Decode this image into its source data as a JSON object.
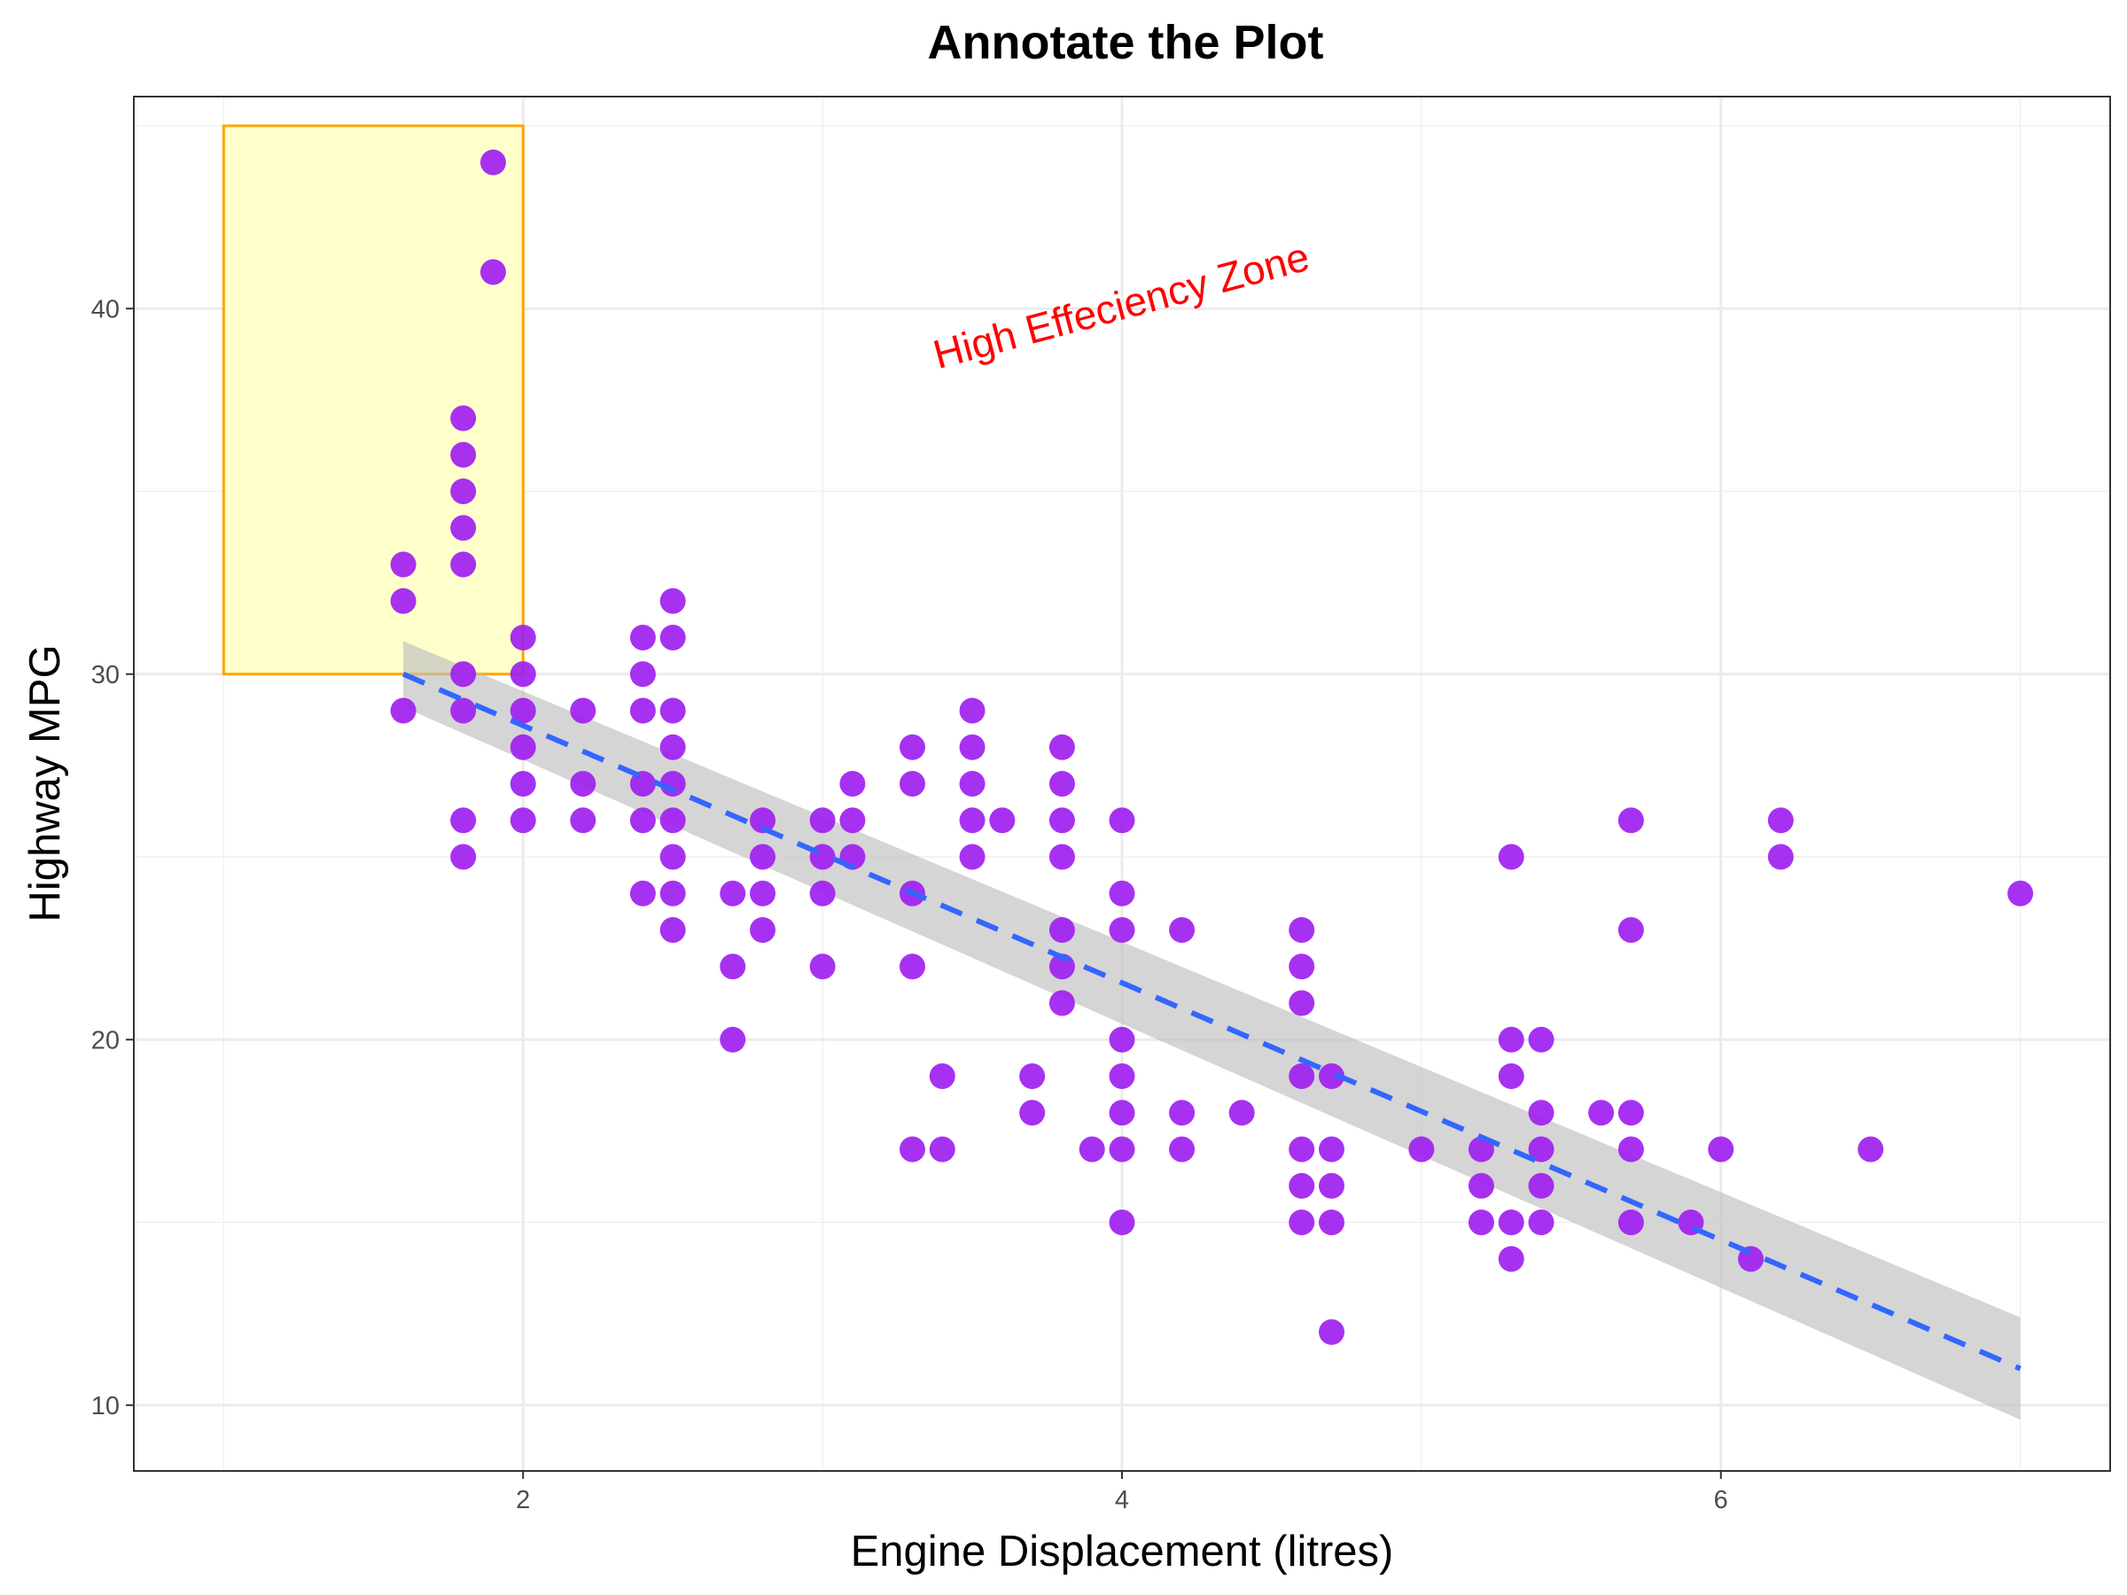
{
  "chart_data": {
    "type": "scatter",
    "title": "Annotate the Plot",
    "xlabel": "Engine Displacement (litres)",
    "ylabel": "Highway MPG",
    "xlim": [
      0.7,
      7.3
    ],
    "ylim": [
      8.2,
      45.8
    ],
    "x_ticks": [
      2,
      4,
      6
    ],
    "y_ticks": [
      10,
      20,
      30,
      40
    ],
    "x_minor": [
      1,
      3,
      5,
      7
    ],
    "y_minor": [
      15,
      25,
      35,
      45
    ],
    "grid": true,
    "point_color": "#a020f0",
    "points": [
      {
        "x": 1.6,
        "y": 33
      },
      {
        "x": 1.6,
        "y": 32
      },
      {
        "x": 1.6,
        "y": 29
      },
      {
        "x": 1.8,
        "y": 37
      },
      {
        "x": 1.8,
        "y": 36
      },
      {
        "x": 1.8,
        "y": 35
      },
      {
        "x": 1.8,
        "y": 34
      },
      {
        "x": 1.8,
        "y": 33
      },
      {
        "x": 1.8,
        "y": 30
      },
      {
        "x": 1.8,
        "y": 29
      },
      {
        "x": 1.8,
        "y": 26
      },
      {
        "x": 1.8,
        "y": 25
      },
      {
        "x": 1.9,
        "y": 44
      },
      {
        "x": 1.9,
        "y": 41
      },
      {
        "x": 2.0,
        "y": 31
      },
      {
        "x": 2.0,
        "y": 30
      },
      {
        "x": 2.0,
        "y": 29
      },
      {
        "x": 2.0,
        "y": 28
      },
      {
        "x": 2.0,
        "y": 27
      },
      {
        "x": 2.0,
        "y": 26
      },
      {
        "x": 2.2,
        "y": 29
      },
      {
        "x": 2.2,
        "y": 27
      },
      {
        "x": 2.2,
        "y": 26
      },
      {
        "x": 2.4,
        "y": 31
      },
      {
        "x": 2.4,
        "y": 30
      },
      {
        "x": 2.4,
        "y": 29
      },
      {
        "x": 2.4,
        "y": 27
      },
      {
        "x": 2.4,
        "y": 26
      },
      {
        "x": 2.4,
        "y": 24
      },
      {
        "x": 2.5,
        "y": 32
      },
      {
        "x": 2.5,
        "y": 31
      },
      {
        "x": 2.5,
        "y": 29
      },
      {
        "x": 2.5,
        "y": 28
      },
      {
        "x": 2.5,
        "y": 27
      },
      {
        "x": 2.5,
        "y": 26
      },
      {
        "x": 2.5,
        "y": 25
      },
      {
        "x": 2.5,
        "y": 24
      },
      {
        "x": 2.5,
        "y": 23
      },
      {
        "x": 2.7,
        "y": 24
      },
      {
        "x": 2.7,
        "y": 22
      },
      {
        "x": 2.7,
        "y": 20
      },
      {
        "x": 2.8,
        "y": 26
      },
      {
        "x": 2.8,
        "y": 25
      },
      {
        "x": 2.8,
        "y": 24
      },
      {
        "x": 2.8,
        "y": 23
      },
      {
        "x": 3.0,
        "y": 26
      },
      {
        "x": 3.0,
        "y": 25
      },
      {
        "x": 3.0,
        "y": 24
      },
      {
        "x": 3.0,
        "y": 22
      },
      {
        "x": 3.1,
        "y": 27
      },
      {
        "x": 3.1,
        "y": 26
      },
      {
        "x": 3.1,
        "y": 25
      },
      {
        "x": 3.3,
        "y": 28
      },
      {
        "x": 3.3,
        "y": 27
      },
      {
        "x": 3.3,
        "y": 24
      },
      {
        "x": 3.3,
        "y": 22
      },
      {
        "x": 3.3,
        "y": 17
      },
      {
        "x": 3.4,
        "y": 19
      },
      {
        "x": 3.4,
        "y": 17
      },
      {
        "x": 3.5,
        "y": 29
      },
      {
        "x": 3.5,
        "y": 28
      },
      {
        "x": 3.5,
        "y": 27
      },
      {
        "x": 3.5,
        "y": 26
      },
      {
        "x": 3.5,
        "y": 25
      },
      {
        "x": 3.6,
        "y": 26
      },
      {
        "x": 3.7,
        "y": 19
      },
      {
        "x": 3.7,
        "y": 18
      },
      {
        "x": 3.8,
        "y": 28
      },
      {
        "x": 3.8,
        "y": 27
      },
      {
        "x": 3.8,
        "y": 26
      },
      {
        "x": 3.8,
        "y": 25
      },
      {
        "x": 3.8,
        "y": 23
      },
      {
        "x": 3.8,
        "y": 22
      },
      {
        "x": 3.8,
        "y": 21
      },
      {
        "x": 3.9,
        "y": 17
      },
      {
        "x": 4.0,
        "y": 26
      },
      {
        "x": 4.0,
        "y": 24
      },
      {
        "x": 4.0,
        "y": 23
      },
      {
        "x": 4.0,
        "y": 20
      },
      {
        "x": 4.0,
        "y": 19
      },
      {
        "x": 4.0,
        "y": 18
      },
      {
        "x": 4.0,
        "y": 17
      },
      {
        "x": 4.0,
        "y": 15
      },
      {
        "x": 4.2,
        "y": 23
      },
      {
        "x": 4.2,
        "y": 18
      },
      {
        "x": 4.2,
        "y": 17
      },
      {
        "x": 4.4,
        "y": 18
      },
      {
        "x": 4.6,
        "y": 23
      },
      {
        "x": 4.6,
        "y": 22
      },
      {
        "x": 4.6,
        "y": 21
      },
      {
        "x": 4.6,
        "y": 19
      },
      {
        "x": 4.6,
        "y": 17
      },
      {
        "x": 4.6,
        "y": 16
      },
      {
        "x": 4.6,
        "y": 15
      },
      {
        "x": 4.7,
        "y": 19
      },
      {
        "x": 4.7,
        "y": 17
      },
      {
        "x": 4.7,
        "y": 16
      },
      {
        "x": 4.7,
        "y": 15
      },
      {
        "x": 4.7,
        "y": 12
      },
      {
        "x": 5.0,
        "y": 17
      },
      {
        "x": 5.2,
        "y": 17
      },
      {
        "x": 5.2,
        "y": 16
      },
      {
        "x": 5.2,
        "y": 15
      },
      {
        "x": 5.3,
        "y": 25
      },
      {
        "x": 5.3,
        "y": 20
      },
      {
        "x": 5.3,
        "y": 19
      },
      {
        "x": 5.3,
        "y": 15
      },
      {
        "x": 5.3,
        "y": 14
      },
      {
        "x": 5.4,
        "y": 20
      },
      {
        "x": 5.4,
        "y": 18
      },
      {
        "x": 5.4,
        "y": 17
      },
      {
        "x": 5.4,
        "y": 16
      },
      {
        "x": 5.4,
        "y": 15
      },
      {
        "x": 5.6,
        "y": 18
      },
      {
        "x": 5.7,
        "y": 26
      },
      {
        "x": 5.7,
        "y": 23
      },
      {
        "x": 5.7,
        "y": 18
      },
      {
        "x": 5.7,
        "y": 17
      },
      {
        "x": 5.7,
        "y": 15
      },
      {
        "x": 5.9,
        "y": 15
      },
      {
        "x": 6.0,
        "y": 17
      },
      {
        "x": 6.1,
        "y": 14
      },
      {
        "x": 6.2,
        "y": 26
      },
      {
        "x": 6.2,
        "y": 25
      },
      {
        "x": 6.5,
        "y": 17
      },
      {
        "x": 7.0,
        "y": 24
      }
    ],
    "trend": {
      "method": "linear",
      "color": "#3366ff",
      "linestyle": "dashed",
      "x": [
        1.6,
        7.0
      ],
      "y": [
        30.0,
        11.0
      ],
      "band_lower": [
        29.1,
        9.6
      ],
      "band_upper": [
        30.9,
        12.4
      ],
      "band_color": "#bfbfbf"
    },
    "annotations": [
      {
        "type": "rect",
        "x": [
          1.0,
          2.0
        ],
        "y": [
          30,
          45
        ],
        "fill": "#ffffcc",
        "stroke": "#ffa500"
      },
      {
        "type": "text",
        "label": "High Effeciency Zone",
        "x": 4.0,
        "y": 40,
        "angle": 15,
        "color": "#ff0000"
      }
    ]
  }
}
